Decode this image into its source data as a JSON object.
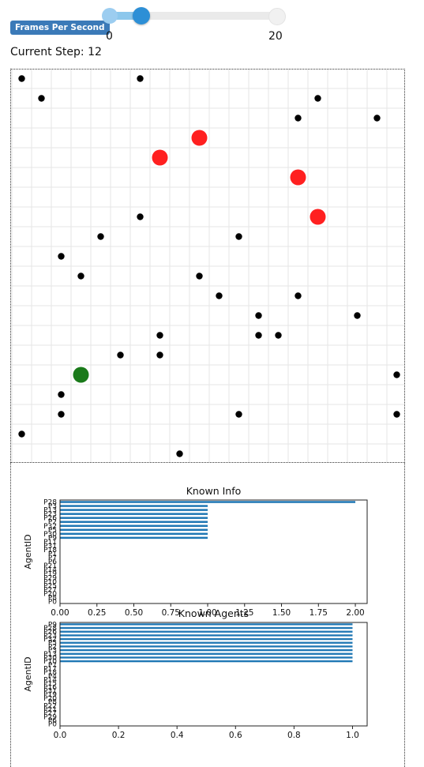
{
  "controls": {
    "fps_label": "Frames Per Second",
    "slider_min": "0",
    "slider_max": "20",
    "slider_value": 2,
    "step_text": "Current Step: 12"
  },
  "grid": {
    "cols": 20,
    "rows": 20,
    "agents": [
      {
        "x": 0,
        "y": 19,
        "kind": "agent"
      },
      {
        "x": 6,
        "y": 19,
        "kind": "agent"
      },
      {
        "x": 1,
        "y": 18,
        "kind": "agent"
      },
      {
        "x": 15,
        "y": 18,
        "kind": "agent"
      },
      {
        "x": 14,
        "y": 17,
        "kind": "agent"
      },
      {
        "x": 18,
        "y": 17,
        "kind": "agent"
      },
      {
        "x": 9,
        "y": 16,
        "kind": "infected"
      },
      {
        "x": 7,
        "y": 15,
        "kind": "infected"
      },
      {
        "x": 14,
        "y": 14,
        "kind": "infected"
      },
      {
        "x": 6,
        "y": 12,
        "kind": "agent"
      },
      {
        "x": 15,
        "y": 12,
        "kind": "infected"
      },
      {
        "x": 4,
        "y": 11,
        "kind": "agent"
      },
      {
        "x": 11,
        "y": 11,
        "kind": "agent"
      },
      {
        "x": 2,
        "y": 10,
        "kind": "agent"
      },
      {
        "x": 3,
        "y": 9,
        "kind": "agent"
      },
      {
        "x": 9,
        "y": 9,
        "kind": "agent"
      },
      {
        "x": 10,
        "y": 8,
        "kind": "agent"
      },
      {
        "x": 14,
        "y": 8,
        "kind": "agent"
      },
      {
        "x": 12,
        "y": 7,
        "kind": "agent"
      },
      {
        "x": 17,
        "y": 7,
        "kind": "agent"
      },
      {
        "x": 7,
        "y": 6,
        "kind": "agent"
      },
      {
        "x": 12,
        "y": 6,
        "kind": "agent"
      },
      {
        "x": 13,
        "y": 6,
        "kind": "agent"
      },
      {
        "x": 5,
        "y": 5,
        "kind": "agent"
      },
      {
        "x": 7,
        "y": 5,
        "kind": "agent"
      },
      {
        "x": 3,
        "y": 4,
        "kind": "source"
      },
      {
        "x": 19,
        "y": 4,
        "kind": "agent"
      },
      {
        "x": 2,
        "y": 3,
        "kind": "agent"
      },
      {
        "x": 2,
        "y": 2,
        "kind": "agent"
      },
      {
        "x": 11,
        "y": 2,
        "kind": "agent"
      },
      {
        "x": 19,
        "y": 2,
        "kind": "agent"
      },
      {
        "x": 0,
        "y": 1,
        "kind": "agent"
      },
      {
        "x": 8,
        "y": 0,
        "kind": "agent"
      }
    ],
    "colors": {
      "agent": "#000000",
      "infected": "#ff2020",
      "source": "#1a7a1a",
      "grid": "#e6e6e6"
    }
  },
  "chart_data": [
    {
      "type": "bar",
      "orientation": "horizontal",
      "title": "Known Info",
      "ylabel": "AgentID",
      "xlabel": "",
      "xlim": [
        0,
        2.08
      ],
      "xticks": [
        "0.00",
        "0.25",
        "0.50",
        "0.75",
        "1.00",
        "1.25",
        "1.50",
        "1.75",
        "2.00"
      ],
      "categories": [
        "P28",
        "P3",
        "P13",
        "P23",
        "P26",
        "P2",
        "P32",
        "P5",
        "P30",
        "P9",
        "P11",
        "P31",
        "P18",
        "P1",
        "P7",
        "P6",
        "P21",
        "P14",
        "P19",
        "P29",
        "P10",
        "P25",
        "P27",
        "P20",
        "P8",
        "P0"
      ],
      "values": [
        2,
        1,
        1,
        1,
        1,
        1,
        1,
        1,
        1,
        1,
        0,
        0,
        0,
        0,
        0,
        0,
        0,
        0,
        0,
        0,
        0,
        0,
        0,
        0,
        0,
        0
      ],
      "color": "#1f77b4"
    },
    {
      "type": "bar",
      "orientation": "horizontal",
      "title": "Known Agents",
      "ylabel": "AgentID",
      "xlabel": "",
      "xlim": [
        0,
        1.05
      ],
      "xticks": [
        "0.0",
        "0.2",
        "0.4",
        "0.6",
        "0.8",
        "1.0"
      ],
      "categories": [
        "P9",
        "P28",
        "P26",
        "P23",
        "P32",
        "P5",
        "P2",
        "P3",
        "P13",
        "P30",
        "P10",
        "P7",
        "P17",
        "P18",
        "P4",
        "P14",
        "P15",
        "P16",
        "P31",
        "P19",
        "P20",
        "P8",
        "P22",
        "P21",
        "P27",
        "P29",
        "P6",
        "P0"
      ],
      "values": [
        1,
        1,
        1,
        1,
        1,
        1,
        1,
        1,
        1,
        1,
        1,
        0,
        0,
        0,
        0,
        0,
        0,
        0,
        0,
        0,
        0,
        0,
        0,
        0,
        0,
        0,
        0,
        0
      ],
      "color": "#1f77b4"
    }
  ]
}
